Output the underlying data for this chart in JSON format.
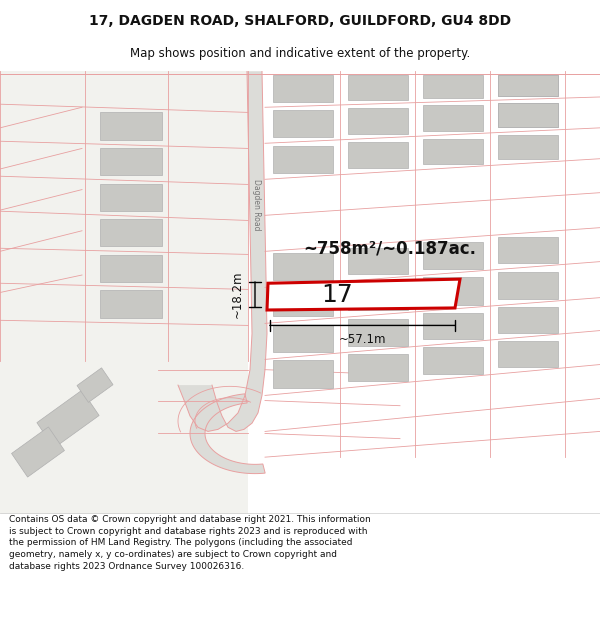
{
  "title_line1": "17, DAGDEN ROAD, SHALFORD, GUILDFORD, GU4 8DD",
  "title_line2": "Map shows position and indicative extent of the property.",
  "footer_text": "Contains OS data © Crown copyright and database right 2021. This information is subject to Crown copyright and database rights 2023 and is reproduced with the permission of HM Land Registry. The polygons (including the associated geometry, namely x, y co-ordinates) are subject to Crown copyright and database rights 2023 Ordnance Survey 100026316.",
  "map_bg": "#f2f2ee",
  "road_fill": "#e8e8e4",
  "plot_line_color": "#e8a0a0",
  "plot_border_color": "#cc0000",
  "building_fill": "#c8c8c4",
  "building_edge": "#b0b0b0",
  "road_edge_color": "#c8a0a0",
  "area_text": "~758m²/~0.187ac.",
  "width_text": "~57.1m",
  "height_text": "~18.2m",
  "number_text": "17",
  "dagden_road_label": "Dagden Road",
  "title_fontsize": 10,
  "subtitle_fontsize": 8.5,
  "footer_fontsize": 6.5
}
